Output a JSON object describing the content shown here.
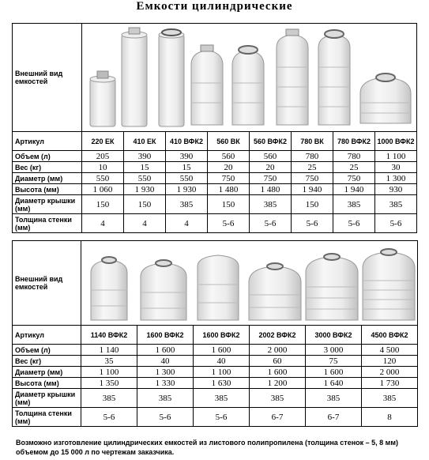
{
  "title": "Емкости цилиндрические",
  "table1": {
    "labels": {
      "appearance": "Внешний вид емкостей",
      "article": "Артикул",
      "volume": "Объем (л)",
      "weight": "Вес (кг)",
      "diameter": "Диаметр (мм)",
      "height": "Высота (мм)",
      "lid": "Диаметр крышки (мм)",
      "wall": "Толщина стенки (мм)"
    },
    "columns": [
      {
        "article": "220 ЕК",
        "volume": "205",
        "weight": "10",
        "diameter": "550",
        "height": "1 060",
        "lid": "150",
        "wall": "4"
      },
      {
        "article": "410 ЕК",
        "volume": "390",
        "weight": "15",
        "diameter": "550",
        "height": "1 930",
        "lid": "150",
        "wall": "4"
      },
      {
        "article": "410 ВФК2",
        "volume": "390",
        "weight": "15",
        "diameter": "550",
        "height": "1 930",
        "lid": "385",
        "wall": "4"
      },
      {
        "article": "560 ВК",
        "volume": "560",
        "weight": "20",
        "diameter": "750",
        "height": "1 480",
        "lid": "150",
        "wall": "5-6"
      },
      {
        "article": "560 ВФК2",
        "volume": "560",
        "weight": "20",
        "diameter": "750",
        "height": "1 480",
        "lid": "385",
        "wall": "5-6"
      },
      {
        "article": "780 ВК",
        "volume": "780",
        "weight": "25",
        "diameter": "750",
        "height": "1 940",
        "lid": "150",
        "wall": "5-6"
      },
      {
        "article": "780 ВФК2",
        "volume": "780",
        "weight": "25",
        "diameter": "750",
        "height": "1 940",
        "lid": "385",
        "wall": "5-6"
      },
      {
        "article": "1000 ВФК2",
        "volume": "1 100",
        "weight": "30",
        "diameter": "1 300",
        "height": "930",
        "lid": "385",
        "wall": "5-6"
      }
    ]
  },
  "table2": {
    "labels": {
      "appearance": "Внешний вид емкостей",
      "article": "Артикул",
      "volume": "Объем (л)",
      "weight": "Вес (кг)",
      "diameter": "Диаметр (мм)",
      "height": "Высота (мм)",
      "lid": "Диаметр крышки (мм)",
      "wall": "Толщина стенки (мм)"
    },
    "columns": [
      {
        "article": "1140 ВФК2",
        "volume": "1 140",
        "weight": "35",
        "diameter": "1 100",
        "height": "1 350",
        "lid": "385",
        "wall": "5-6"
      },
      {
        "article": "1600 ВФК2",
        "volume": "1 600",
        "weight": "40",
        "diameter": "1 300",
        "height": "1 330",
        "lid": "385",
        "wall": "5-6"
      },
      {
        "article": "1600 ВФК2",
        "volume": "1 600",
        "weight": "40",
        "diameter": "1 100",
        "height": "1 630",
        "lid": "385",
        "wall": "5-6"
      },
      {
        "article": "2002 ВФК2",
        "volume": "2 000",
        "weight": "60",
        "diameter": "1 600",
        "height": "1 200",
        "lid": "385",
        "wall": "6-7"
      },
      {
        "article": "3000 ВФК2",
        "volume": "3 000",
        "weight": "75",
        "diameter": "1 600",
        "height": "1 640",
        "lid": "385",
        "wall": "6-7"
      },
      {
        "article": "4500 ВФК2",
        "volume": "4 500",
        "weight": "120",
        "diameter": "2 000",
        "height": "1 730",
        "lid": "385",
        "wall": "8"
      }
    ]
  },
  "note": "Возможно изготовление цилиндрических емкостей из листового полипропилена (толщина стенок – 5, 8 мм) объемом  до 15 000 л  по чертежам заказчика."
}
